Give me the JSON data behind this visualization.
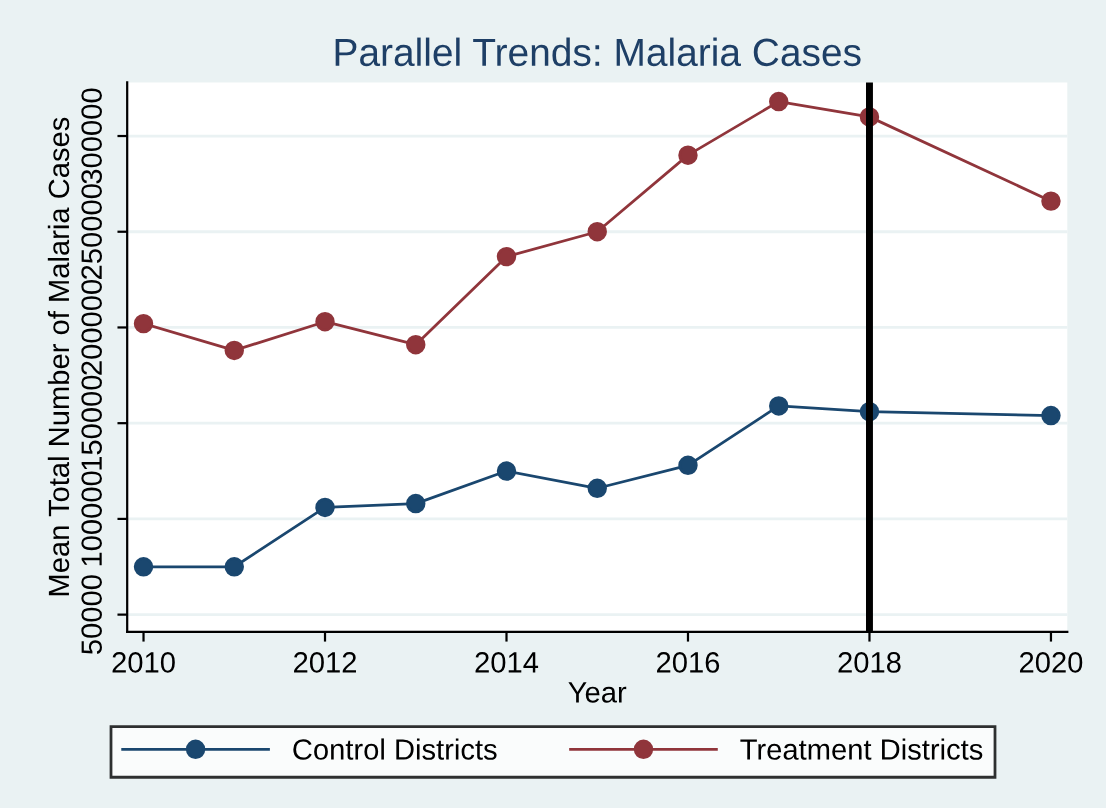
{
  "chart_data": {
    "type": "line",
    "title": "Parallel Trends: Malaria Cases",
    "xlabel": "Year",
    "ylabel": "Mean Total Number of Malaria Cases",
    "x": [
      2010,
      2011,
      2012,
      2013,
      2014,
      2015,
      2016,
      2017,
      2018,
      2020
    ],
    "series": [
      {
        "name": "Control Districts",
        "color": "#1a476f",
        "values": [
          75000,
          75000,
          106000,
          108000,
          125000,
          116000,
          128000,
          159000,
          156000,
          154000
        ]
      },
      {
        "name": "Treatment Districts",
        "color": "#90353b",
        "values": [
          202000,
          188000,
          203000,
          191000,
          237000,
          250000,
          290000,
          318000,
          310000,
          266000
        ]
      }
    ],
    "xlim": [
      2009.82,
      2020.18
    ],
    "ylim": [
      41000,
      328000
    ],
    "xticks": [
      2010,
      2012,
      2014,
      2016,
      2018,
      2020
    ],
    "yticks": [
      50000,
      100000,
      150000,
      200000,
      250000,
      300000
    ],
    "ref_lines": [
      {
        "axis": "x",
        "value": 2018,
        "color": "#000000"
      }
    ],
    "grid": "y",
    "legend": "bottom",
    "marker": "circle",
    "line_style": "solid"
  }
}
